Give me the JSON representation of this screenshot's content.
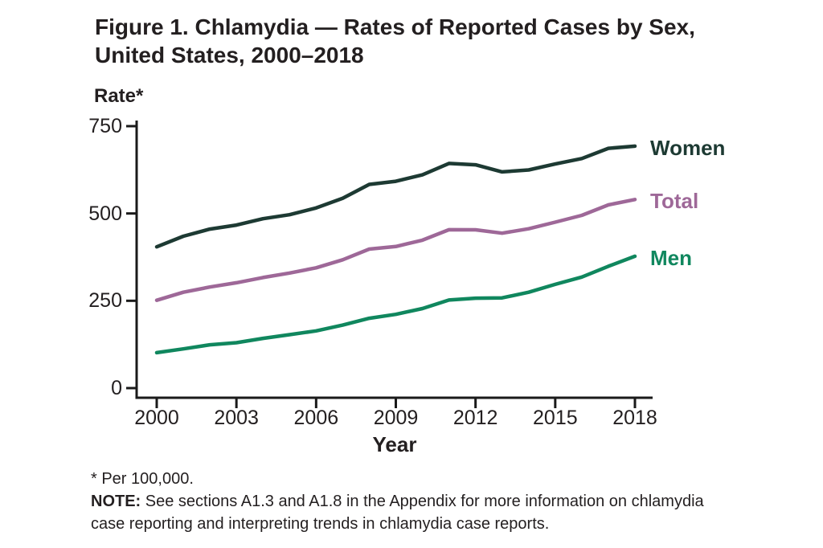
{
  "figure": {
    "title_lines": [
      "Figure 1. Chlamydia — Rates of Reported Cases by Sex,",
      "United States, 2000–2018"
    ],
    "y_axis_title": "Rate*",
    "x_axis_title": "Year",
    "footnote": "* Per 100,000.",
    "note_label": "NOTE:",
    "note_text": " See sections A1.3 and A1.8 in the Appendix for more information on chlamydia case reporting and interpreting trends in chlamydia case reports."
  },
  "theme": {
    "background": "#ffffff",
    "axis_color": "#1a1a1a",
    "text_color": "#231f20",
    "women_color": "#1d3a33",
    "total_color": "#9e6898",
    "men_color": "#10875e"
  },
  "chart_data": {
    "type": "line",
    "title": "Figure 1. Chlamydia — Rates of Reported Cases by Sex, United States, 2000–2018",
    "xlabel": "Year",
    "ylabel": "Rate*",
    "units": "per 100,000",
    "grid": false,
    "legend_position": "right of line ends, colored text labels",
    "xlim": [
      2000,
      2018
    ],
    "ylim": [
      0,
      750
    ],
    "xticks": [
      2000,
      2003,
      2006,
      2009,
      2012,
      2015,
      2018
    ],
    "yticks": [
      0,
      250,
      500,
      750
    ],
    "x": [
      2000,
      2001,
      2002,
      2003,
      2004,
      2005,
      2006,
      2007,
      2008,
      2009,
      2010,
      2011,
      2012,
      2013,
      2014,
      2015,
      2016,
      2017,
      2018
    ],
    "series": [
      {
        "name": "Women",
        "color": "#1d3a33",
        "values": [
          404.5,
          434.8,
          455.4,
          466.9,
          485.0,
          496.5,
          515.8,
          543.6,
          583.2,
          592.2,
          610.6,
          643.3,
          639.3,
          619.0,
          624.6,
          641.7,
          657.3,
          686.5,
          692.7
        ]
      },
      {
        "name": "Total",
        "color": "#9e6898",
        "values": [
          251.4,
          274.5,
          289.4,
          301.7,
          316.5,
          329.4,
          344.3,
          367.5,
          398.1,
          405.3,
          423.6,
          453.4,
          453.3,
          443.5,
          456.1,
          475.0,
          494.7,
          524.6,
          539.9
        ]
      },
      {
        "name": "Men",
        "color": "#10875e",
        "values": [
          101.5,
          112.3,
          123.9,
          130.0,
          142.5,
          152.9,
          163.9,
          180.3,
          200.0,
          211.1,
          227.7,
          252.1,
          257.5,
          258.4,
          274.4,
          297.1,
          317.9,
          348.8,
          377.5
        ]
      }
    ]
  }
}
